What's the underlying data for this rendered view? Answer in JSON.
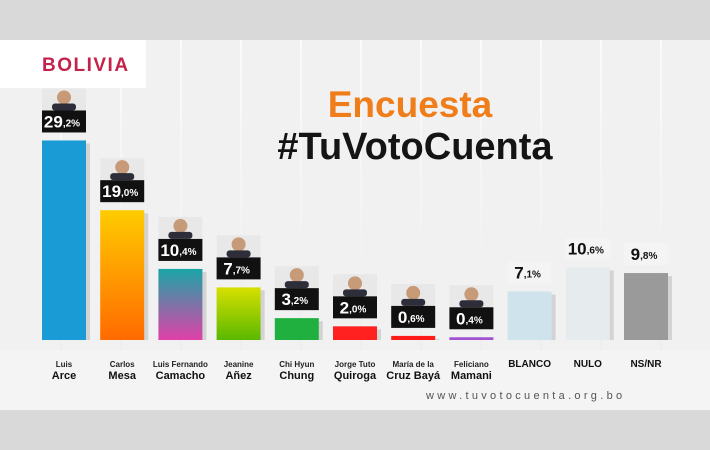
{
  "header": {
    "brand": "BOLIVIA",
    "title": "Encuesta",
    "hashtag": "#TuVotoCuenta",
    "url": "www.tuvotocuenta.org.bo"
  },
  "chart_data": {
    "type": "bar",
    "title": "Encuesta #TuVotoCuenta",
    "ylim": [
      0,
      30
    ],
    "grid": false,
    "legend": "none",
    "categories": [
      {
        "first": "Luis",
        "last": "Arce",
        "photo": true
      },
      {
        "first": "Carlos",
        "last": "Mesa",
        "photo": true
      },
      {
        "first": "Luis Fernando",
        "last": "Camacho",
        "photo": true
      },
      {
        "first": "Jeanine",
        "last": "Añez",
        "photo": true
      },
      {
        "first": "Chi Hyun",
        "last": "Chung",
        "photo": true
      },
      {
        "first": "Jorge Tuto",
        "last": "Quiroga",
        "photo": true
      },
      {
        "first": "María de la",
        "last": "Cruz Bayá",
        "photo": true
      },
      {
        "first": "Feliciano",
        "last": "Mamani",
        "photo": true
      },
      {
        "first": "",
        "last": "BLANCO",
        "photo": false
      },
      {
        "first": "",
        "last": "NULO",
        "photo": false
      },
      {
        "first": "",
        "last": "NS/NR",
        "photo": false
      }
    ],
    "values": [
      29.2,
      19.0,
      10.4,
      7.7,
      3.2,
      2.0,
      0.6,
      0.4,
      7.1,
      10.6,
      9.8
    ],
    "value_labels": [
      {
        "int": "29",
        "dec": ",2%"
      },
      {
        "int": "19",
        "dec": ",0%"
      },
      {
        "int": "10",
        "dec": ",4%"
      },
      {
        "int": "7",
        "dec": ",7%"
      },
      {
        "int": "3",
        "dec": ",2%"
      },
      {
        "int": "2",
        "dec": ",0%"
      },
      {
        "int": "0",
        "dec": ",6%"
      },
      {
        "int": "0",
        "dec": ",4%"
      },
      {
        "int": "7",
        "dec": ",1%"
      },
      {
        "int": "10",
        "dec": ",6%"
      },
      {
        "int": "9",
        "dec": ",8%"
      }
    ],
    "colors": [
      [
        "#1b9bd6",
        "#1b9bd6"
      ],
      [
        "#ffcc00",
        "#ff6a00"
      ],
      [
        "#1aa6a6",
        "#e040a8"
      ],
      [
        "#d8e000",
        "#5ab800"
      ],
      [
        "#20b040",
        "#20b040"
      ],
      [
        "#ff2020",
        "#ff2020"
      ],
      [
        "#ff1a1a",
        "#ff1a1a"
      ],
      [
        "#a050d0",
        "#a050d0"
      ],
      [
        "#cfe3ec",
        "#cfe3ec"
      ],
      [
        "#e6ebee",
        "#e6ebee"
      ],
      [
        "#9a9a9a",
        "#9a9a9a"
      ]
    ]
  }
}
